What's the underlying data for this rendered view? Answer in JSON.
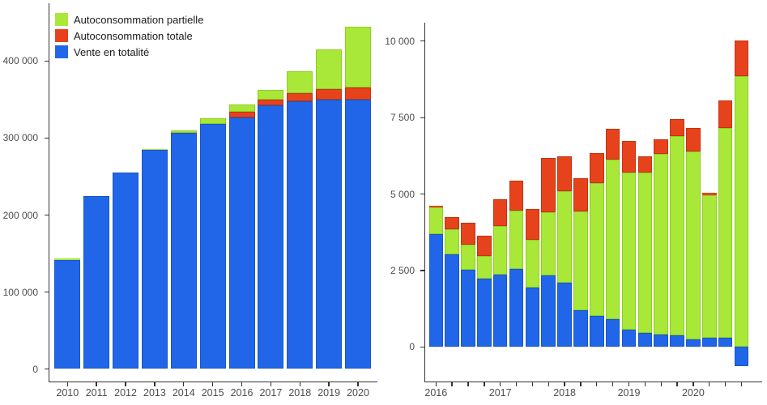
{
  "colors": {
    "background": "#ffffff",
    "axis": "#333333",
    "tick_text": "#4d4d4d",
    "legend_text": "#1a1a1a",
    "vente_blue": "#2166E8",
    "totale_red": "#E6431C",
    "partielle_green": "#A9E838"
  },
  "legend": {
    "items": [
      {
        "label": "Autoconsommation partielle",
        "color": "#A9E838"
      },
      {
        "label": "Autoconsommation totale",
        "color": "#E6431C"
      },
      {
        "label": "Vente en totalité",
        "color": "#2166E8"
      }
    ]
  },
  "chart_data": [
    {
      "id": "annual",
      "type": "bar",
      "stacked": true,
      "title": "",
      "xlabel": "",
      "ylabel": "",
      "grid": false,
      "legend_position": "top-left-inside",
      "ylim": [
        0,
        467000
      ],
      "categories": [
        "2010",
        "2011",
        "2012",
        "2013",
        "2014",
        "2015",
        "2016",
        "2017",
        "2018",
        "2019",
        "2020"
      ],
      "series": [
        {
          "name": "Vente en totalité",
          "color": "#2166E8",
          "border": "#1956C8",
          "values": [
            141000,
            223500,
            254500,
            283500,
            306000,
            318000,
            326000,
            341500,
            347000,
            349000,
            349000
          ]
        },
        {
          "name": "Autoconsommation totale",
          "color": "#E6431C",
          "border": "#C23312",
          "values": [
            0,
            0,
            0,
            0,
            0,
            0,
            7000,
            7500,
            11000,
            14000,
            16000
          ]
        },
        {
          "name": "Autoconsommation partielle",
          "color": "#A9E838",
          "border": "#8CCF1F",
          "values": [
            2000,
            0,
            0,
            1500,
            3500,
            7000,
            9500,
            13000,
            28000,
            51000,
            79000
          ]
        }
      ],
      "yticks": [
        {
          "value": 0,
          "label": "0"
        },
        {
          "value": 100000,
          "label": "100 000"
        },
        {
          "value": 200000,
          "label": "200 000"
        },
        {
          "value": 300000,
          "label": "300 000"
        },
        {
          "value": 400000,
          "label": "400 000"
        }
      ],
      "x_labels": [
        {
          "index": 0,
          "label": "2010"
        },
        {
          "index": 1,
          "label": "2011"
        },
        {
          "index": 2,
          "label": "2012"
        },
        {
          "index": 3,
          "label": "2013"
        },
        {
          "index": 4,
          "label": "2014"
        },
        {
          "index": 5,
          "label": "2015"
        },
        {
          "index": 6,
          "label": "2016"
        },
        {
          "index": 7,
          "label": "2017"
        },
        {
          "index": 8,
          "label": "2018"
        },
        {
          "index": 9,
          "label": "2019"
        },
        {
          "index": 10,
          "label": "2020"
        }
      ]
    },
    {
      "id": "quarterly",
      "type": "bar",
      "stacked": true,
      "title": "",
      "xlabel": "",
      "ylabel": "",
      "grid": false,
      "legend_position": "none",
      "ylim": [
        -700,
        10600
      ],
      "categories": [
        "2016-T1",
        "2016-T2",
        "2016-T3",
        "2016-T4",
        "2017-T1",
        "2017-T2",
        "2017-T3",
        "2017-T4",
        "2018-T1",
        "2018-T2",
        "2018-T3",
        "2018-T4",
        "2019-T1",
        "2019-T2",
        "2019-T3",
        "2019-T4",
        "2020-T1",
        "2020-T2",
        "2020-T3",
        "2020-T4"
      ],
      "series": [
        {
          "name": "Vente en totalité",
          "color": "#2166E8",
          "border": "#1956C8",
          "values": [
            3670,
            3000,
            2520,
            2220,
            2340,
            2545,
            1930,
            2310,
            2090,
            1190,
            1000,
            890,
            540,
            440,
            400,
            355,
            220,
            290,
            290,
            -635
          ]
        },
        {
          "name": "Autoconsommation partielle",
          "color": "#A9E838",
          "border": "#8CCF1F",
          "values": [
            870,
            845,
            820,
            740,
            1595,
            1900,
            1545,
            2090,
            2990,
            3230,
            4350,
            5230,
            5140,
            5255,
            5895,
            6530,
            6165,
            4660,
            6845,
            8825
          ]
        },
        {
          "name": "Autoconsommation totale",
          "color": "#E6431C",
          "border": "#C23312",
          "values": [
            60,
            380,
            710,
            670,
            865,
            970,
            1030,
            1765,
            1130,
            1085,
            970,
            990,
            1040,
            530,
            485,
            540,
            765,
            70,
            905,
            1175
          ]
        }
      ],
      "yticks": [
        {
          "value": 0,
          "label": "0"
        },
        {
          "value": 2500,
          "label": "2 500"
        },
        {
          "value": 5000,
          "label": "5 000"
        },
        {
          "value": 7500,
          "label": "7 500"
        },
        {
          "value": 10000,
          "label": "10 000"
        }
      ],
      "x_labels": [
        {
          "index": 0,
          "label": "2016"
        },
        {
          "index": 4,
          "label": "2017"
        },
        {
          "index": 8,
          "label": "2018"
        },
        {
          "index": 12,
          "label": "2019"
        },
        {
          "index": 16,
          "label": "2020"
        }
      ]
    }
  ]
}
